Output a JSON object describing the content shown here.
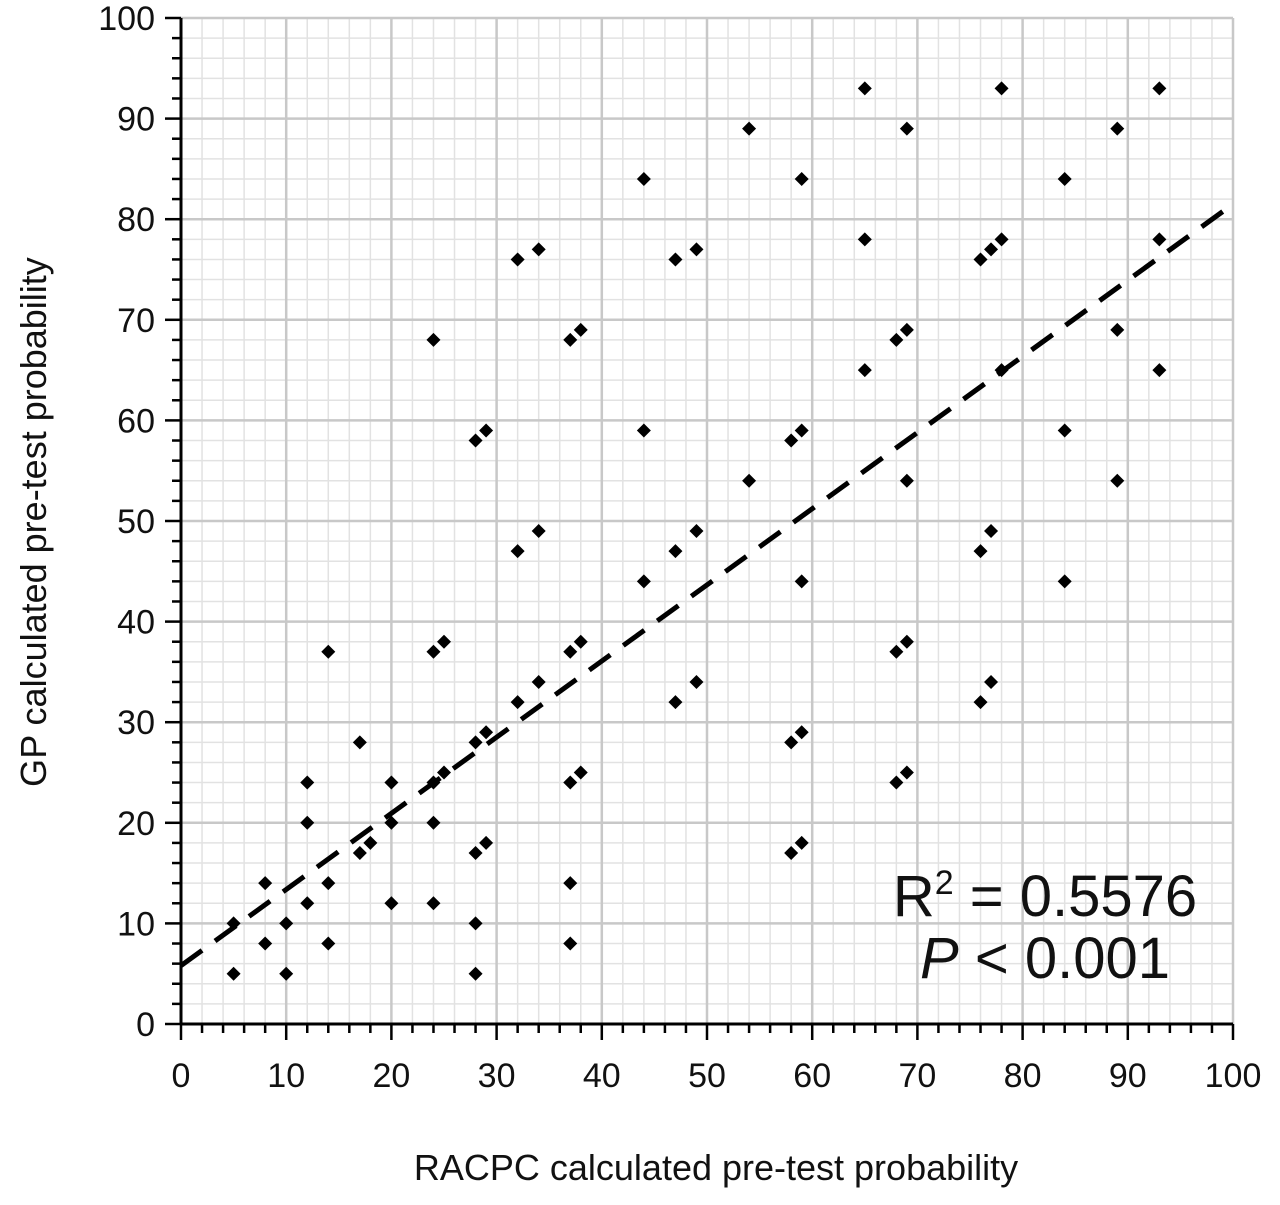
{
  "chart_data": {
    "type": "scatter",
    "xlabel": "RACPC calculated pre-test probability",
    "ylabel": "GP calculated pre-test probability",
    "xlim": [
      0,
      100
    ],
    "ylim": [
      0,
      100
    ],
    "xticks": [
      0,
      10,
      20,
      30,
      40,
      50,
      60,
      70,
      80,
      90,
      100
    ],
    "yticks": [
      0,
      10,
      20,
      30,
      40,
      50,
      60,
      70,
      80,
      90,
      100
    ],
    "grid": true,
    "series": [
      {
        "points": [
          [
            5,
            5
          ],
          [
            5,
            10
          ],
          [
            8,
            8
          ],
          [
            8,
            14
          ],
          [
            10,
            5
          ],
          [
            10,
            10
          ],
          [
            12,
            12
          ],
          [
            12,
            20
          ],
          [
            12,
            24
          ],
          [
            14,
            8
          ],
          [
            14,
            14
          ],
          [
            14,
            37
          ],
          [
            17,
            17
          ],
          [
            17,
            28
          ],
          [
            18,
            18
          ],
          [
            20,
            12
          ],
          [
            20,
            20
          ],
          [
            20,
            24
          ],
          [
            24,
            12
          ],
          [
            24,
            20
          ],
          [
            24,
            24
          ],
          [
            24,
            37
          ],
          [
            24,
            68
          ],
          [
            25,
            25
          ],
          [
            25,
            38
          ],
          [
            28,
            5
          ],
          [
            28,
            10
          ],
          [
            28,
            17
          ],
          [
            28,
            28
          ],
          [
            28,
            58
          ],
          [
            29,
            18
          ],
          [
            29,
            29
          ],
          [
            29,
            59
          ],
          [
            32,
            32
          ],
          [
            32,
            47
          ],
          [
            32,
            76
          ],
          [
            34,
            34
          ],
          [
            34,
            49
          ],
          [
            34,
            77
          ],
          [
            37,
            8
          ],
          [
            37,
            14
          ],
          [
            37,
            24
          ],
          [
            37,
            37
          ],
          [
            37,
            68
          ],
          [
            38,
            25
          ],
          [
            38,
            38
          ],
          [
            38,
            69
          ],
          [
            44,
            44
          ],
          [
            44,
            59
          ],
          [
            44,
            84
          ],
          [
            47,
            32
          ],
          [
            47,
            47
          ],
          [
            47,
            76
          ],
          [
            49,
            34
          ],
          [
            49,
            49
          ],
          [
            49,
            77
          ],
          [
            54,
            54
          ],
          [
            54,
            89
          ],
          [
            58,
            17
          ],
          [
            58,
            28
          ],
          [
            58,
            58
          ],
          [
            59,
            18
          ],
          [
            59,
            29
          ],
          [
            59,
            44
          ],
          [
            59,
            59
          ],
          [
            59,
            84
          ],
          [
            65,
            65
          ],
          [
            65,
            78
          ],
          [
            65,
            93
          ],
          [
            68,
            24
          ],
          [
            68,
            37
          ],
          [
            68,
            68
          ],
          [
            69,
            25
          ],
          [
            69,
            38
          ],
          [
            69,
            54
          ],
          [
            69,
            69
          ],
          [
            69,
            89
          ],
          [
            76,
            32
          ],
          [
            76,
            47
          ],
          [
            76,
            76
          ],
          [
            77,
            34
          ],
          [
            77,
            49
          ],
          [
            77,
            77
          ],
          [
            78,
            65
          ],
          [
            78,
            78
          ],
          [
            78,
            93
          ],
          [
            84,
            44
          ],
          [
            84,
            59
          ],
          [
            84,
            84
          ],
          [
            89,
            54
          ],
          [
            89,
            69
          ],
          [
            89,
            89
          ],
          [
            93,
            65
          ],
          [
            93,
            78
          ],
          [
            93,
            93
          ]
        ]
      }
    ],
    "trendline": {
      "type": "linear",
      "style": "dashed",
      "start": [
        0,
        5.8
      ],
      "end": [
        100,
        81.5
      ]
    },
    "annotations": {
      "r2_prefix": "R",
      "r2_exp": "2",
      "r2_value": " = 0.5576",
      "p_symbol": "P",
      "p_value": " < 0.001"
    },
    "colors": {
      "marker": "#000000",
      "major_grid": "#c8c8c8",
      "minor_grid": "#e2e2e2",
      "axis": "#000000"
    }
  }
}
